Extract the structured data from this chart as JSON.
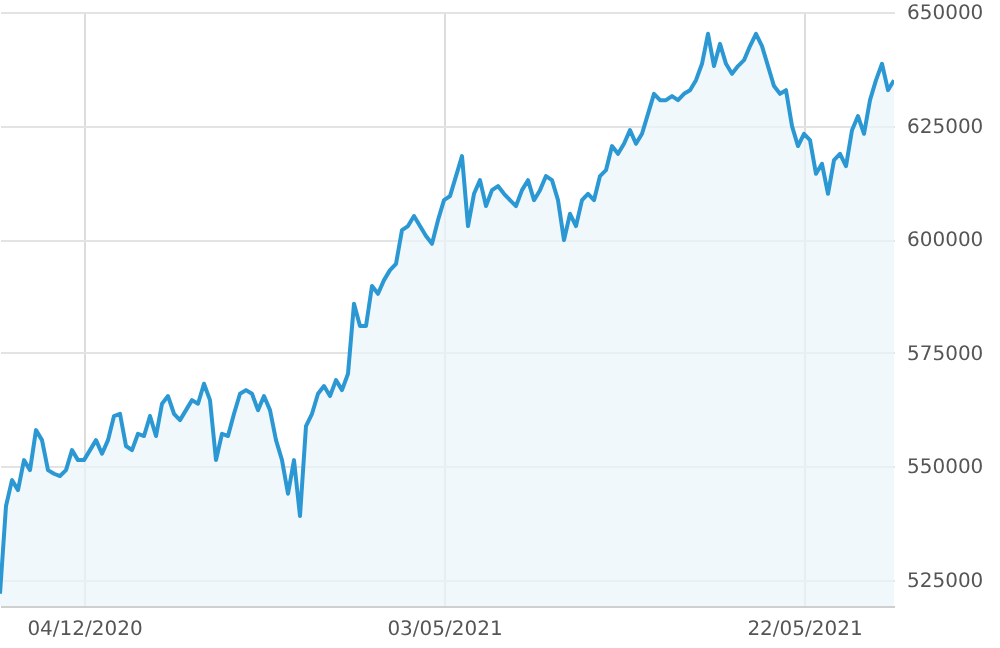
{
  "chart_data": {
    "type": "area",
    "categories": [
      null,
      null,
      null,
      null,
      null,
      null,
      null,
      null,
      null,
      null,
      null,
      null,
      null,
      null,
      "04/12/2020",
      null,
      null,
      null,
      null,
      null,
      null,
      null,
      null,
      null,
      null,
      null,
      null,
      null,
      null,
      null,
      null,
      null,
      null,
      null,
      null,
      null,
      null,
      null,
      null,
      null,
      null,
      null,
      null,
      null,
      null,
      null,
      null,
      null,
      null,
      null,
      null,
      null,
      null,
      null,
      null,
      null,
      null,
      null,
      null,
      null,
      null,
      null,
      null,
      null,
      null,
      null,
      null,
      null,
      null,
      null,
      null,
      null,
      null,
      null,
      "03/05/2021",
      null,
      null,
      null,
      null,
      null,
      null,
      null,
      null,
      null,
      null,
      null,
      null,
      null,
      null,
      null,
      null,
      null,
      null,
      null,
      null,
      null,
      null,
      null,
      null,
      null,
      null,
      null,
      null,
      null,
      null,
      null,
      null,
      null,
      null,
      null,
      null,
      null,
      null,
      null,
      null,
      null,
      null,
      null,
      null,
      null,
      null,
      null,
      null,
      null,
      null,
      null,
      null,
      null,
      null,
      null,
      null,
      null,
      null,
      null,
      "22/05/2021",
      null,
      null,
      null,
      null,
      null,
      null,
      null,
      null,
      null,
      null,
      null,
      null,
      null,
      null,
      null
    ],
    "series": [
      {
        "color": "#2b98d4",
        "values": [
          522000,
          541300,
          547000,
          544800,
          551400,
          549200,
          558000,
          555800,
          549200,
          548400,
          547900,
          549200,
          553600,
          551400,
          551400,
          553600,
          555800,
          552800,
          555800,
          561100,
          561600,
          554500,
          553600,
          557200,
          556700,
          561100,
          556700,
          563800,
          565500,
          561600,
          560200,
          562400,
          564600,
          563800,
          568200,
          564600,
          551400,
          557200,
          556700,
          561600,
          566000,
          566800,
          566000,
          562400,
          565500,
          562400,
          555800,
          551400,
          544000,
          551400,
          539100,
          558900,
          561600,
          566000,
          567700,
          565500,
          569000,
          566800,
          570400,
          585800,
          580900,
          580900,
          589700,
          588000,
          591000,
          593200,
          594600,
          602000,
          602900,
          605100,
          602900,
          600700,
          599000,
          604200,
          608600,
          609500,
          613900,
          618300,
          602900,
          610000,
          613000,
          607300,
          610800,
          611700,
          610000,
          608600,
          607300,
          610800,
          613000,
          608600,
          610800,
          613900,
          613000,
          608600,
          599800,
          605600,
          602900,
          608600,
          610000,
          608600,
          613900,
          615200,
          620500,
          618800,
          621000,
          624000,
          621000,
          623200,
          627600,
          632000,
          630600,
          630600,
          631500,
          630600,
          632000,
          632800,
          635000,
          638600,
          645200,
          638100,
          643000,
          638600,
          636400,
          638100,
          639400,
          642500,
          645200,
          642500,
          638100,
          633700,
          632000,
          632800,
          624900,
          620500,
          623200,
          621800,
          614400,
          616600,
          610000,
          617400,
          618800,
          616100,
          624000,
          627100,
          623200,
          630600,
          635000,
          638600,
          632800,
          635000
        ]
      }
    ],
    "ylim": [
      519300,
      650000
    ],
    "yticks": [
      525000,
      550000,
      575000,
      600000,
      625000,
      650000
    ],
    "grid": true
  }
}
